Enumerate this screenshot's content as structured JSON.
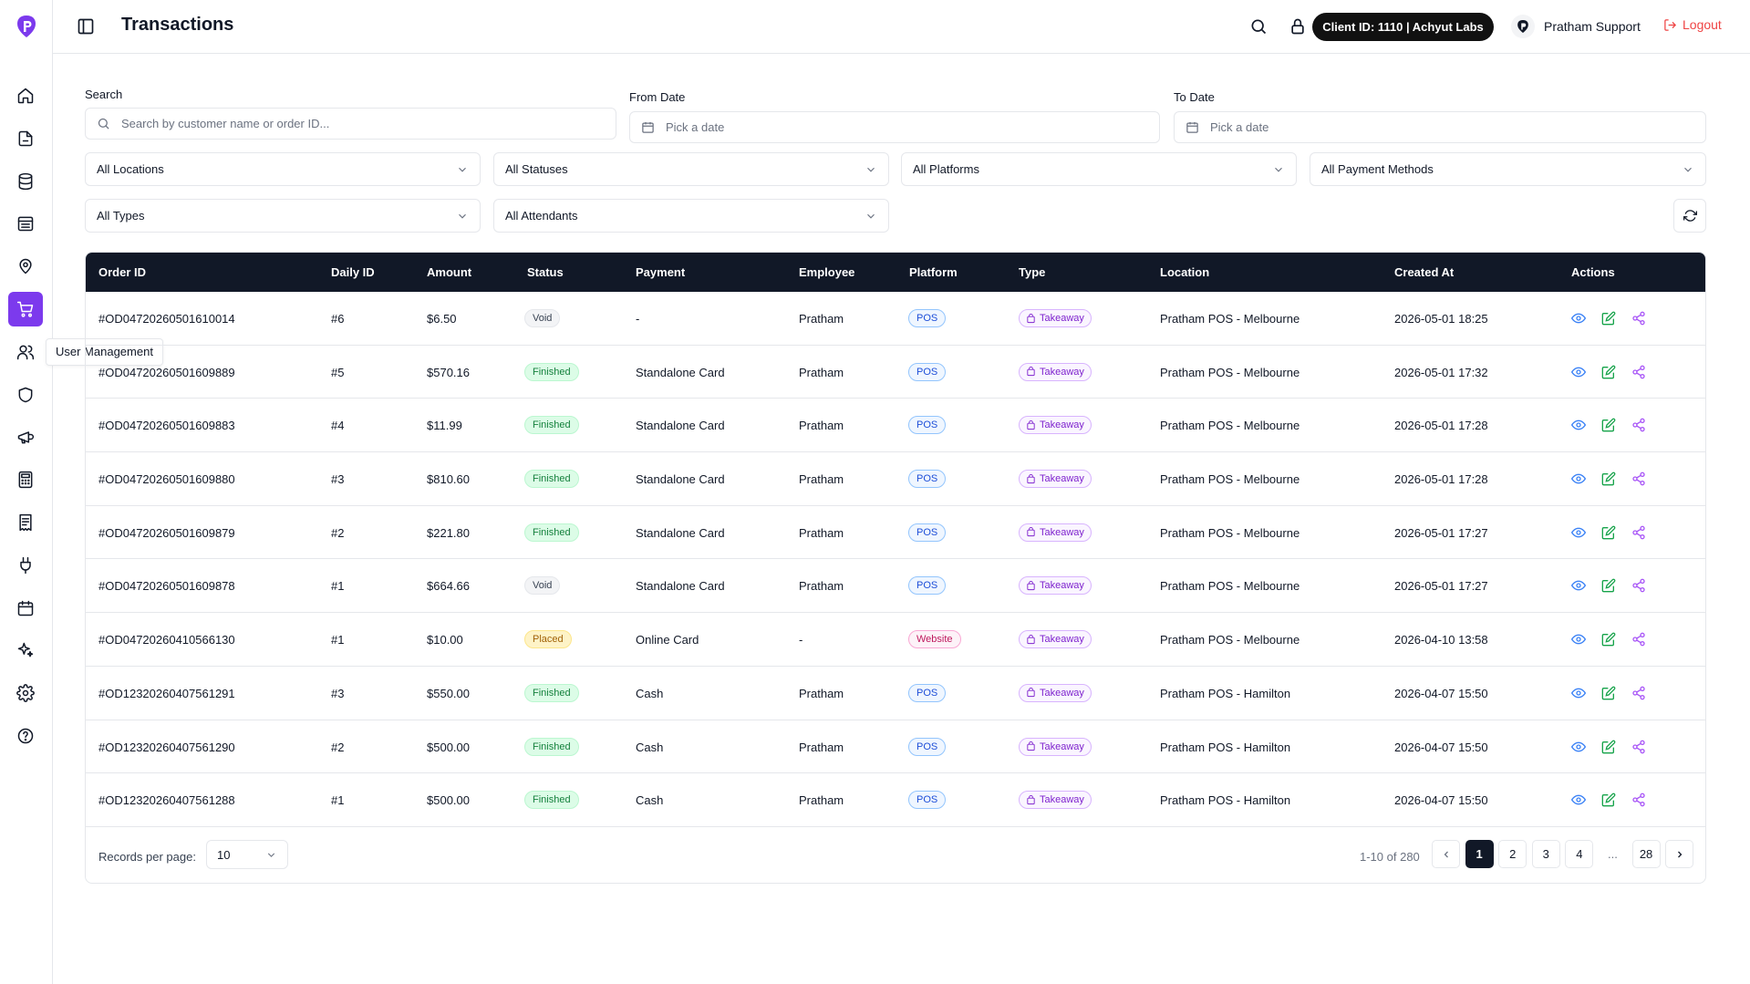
{
  "header": {
    "title": "Transactions",
    "client_badge": "Client ID: 1110 | Achyut Labs",
    "user_name": "Pratham Support",
    "logout_label": "Logout"
  },
  "sidebar": {
    "tooltip": "User Management",
    "items": [
      {
        "icon": "home-icon"
      },
      {
        "icon": "file-icon"
      },
      {
        "icon": "database-icon"
      },
      {
        "icon": "building-icon"
      },
      {
        "icon": "map-pin-icon"
      },
      {
        "icon": "cart-icon",
        "active": true
      },
      {
        "icon": "users-icon"
      },
      {
        "icon": "shield-icon"
      },
      {
        "icon": "megaphone-icon"
      },
      {
        "icon": "calculator-icon"
      },
      {
        "icon": "receipt-icon"
      },
      {
        "icon": "plug-icon"
      },
      {
        "icon": "calendar-icon"
      },
      {
        "icon": "sparkles-icon"
      },
      {
        "icon": "gear-icon"
      },
      {
        "icon": "help-icon"
      }
    ]
  },
  "filters": {
    "search_label": "Search",
    "search_placeholder": "Search by customer name or order ID...",
    "from_label": "From Date",
    "from_placeholder": "Pick a date",
    "to_label": "To Date",
    "to_placeholder": "Pick a date",
    "locations": "All Locations",
    "statuses": "All Statuses",
    "platforms": "All Platforms",
    "payment_methods": "All Payment Methods",
    "types": "All Types",
    "attendants": "All Attendants"
  },
  "table": {
    "columns": [
      "Order ID",
      "Daily ID",
      "Amount",
      "Status",
      "Payment",
      "Employee",
      "Platform",
      "Type",
      "Location",
      "Created At",
      "Actions"
    ],
    "rows": [
      {
        "order_id": "#OD04720260501610014",
        "daily_id": "#6",
        "amount": "$6.50",
        "status": "Void",
        "payment": "-",
        "employee": "Pratham",
        "platform": "POS",
        "type": "Takeaway",
        "location": "Pratham POS - Melbourne",
        "created_at": "2026-05-01 18:25"
      },
      {
        "order_id": "#OD04720260501609889",
        "daily_id": "#5",
        "amount": "$570.16",
        "status": "Finished",
        "payment": "Standalone Card",
        "employee": "Pratham",
        "platform": "POS",
        "type": "Takeaway",
        "location": "Pratham POS - Melbourne",
        "created_at": "2026-05-01 17:32"
      },
      {
        "order_id": "#OD04720260501609883",
        "daily_id": "#4",
        "amount": "$11.99",
        "status": "Finished",
        "payment": "Standalone Card",
        "employee": "Pratham",
        "platform": "POS",
        "type": "Takeaway",
        "location": "Pratham POS - Melbourne",
        "created_at": "2026-05-01 17:28"
      },
      {
        "order_id": "#OD04720260501609880",
        "daily_id": "#3",
        "amount": "$810.60",
        "status": "Finished",
        "payment": "Standalone Card",
        "employee": "Pratham",
        "platform": "POS",
        "type": "Takeaway",
        "location": "Pratham POS - Melbourne",
        "created_at": "2026-05-01 17:28"
      },
      {
        "order_id": "#OD04720260501609879",
        "daily_id": "#2",
        "amount": "$221.80",
        "status": "Finished",
        "payment": "Standalone Card",
        "employee": "Pratham",
        "platform": "POS",
        "type": "Takeaway",
        "location": "Pratham POS - Melbourne",
        "created_at": "2026-05-01 17:27"
      },
      {
        "order_id": "#OD04720260501609878",
        "daily_id": "#1",
        "amount": "$664.66",
        "status": "Void",
        "payment": "Standalone Card",
        "employee": "Pratham",
        "platform": "POS",
        "type": "Takeaway",
        "location": "Pratham POS - Melbourne",
        "created_at": "2026-05-01 17:27"
      },
      {
        "order_id": "#OD04720260410566130",
        "daily_id": "#1",
        "amount": "$10.00",
        "status": "Placed",
        "payment": "Online Card",
        "employee": "-",
        "platform": "Website",
        "type": "Takeaway",
        "location": "Pratham POS - Melbourne",
        "created_at": "2026-04-10 13:58"
      },
      {
        "order_id": "#OD12320260407561291",
        "daily_id": "#3",
        "amount": "$550.00",
        "status": "Finished",
        "payment": "Cash",
        "employee": "Pratham",
        "platform": "POS",
        "type": "Takeaway",
        "location": "Pratham POS - Hamilton",
        "created_at": "2026-04-07 15:50"
      },
      {
        "order_id": "#OD12320260407561290",
        "daily_id": "#2",
        "amount": "$500.00",
        "status": "Finished",
        "payment": "Cash",
        "employee": "Pratham",
        "platform": "POS",
        "type": "Takeaway",
        "location": "Pratham POS - Hamilton",
        "created_at": "2026-04-07 15:50"
      },
      {
        "order_id": "#OD12320260407561288",
        "daily_id": "#1",
        "amount": "$500.00",
        "status": "Finished",
        "payment": "Cash",
        "employee": "Pratham",
        "platform": "POS",
        "type": "Takeaway",
        "location": "Pratham POS - Hamilton",
        "created_at": "2026-04-07 15:50"
      }
    ]
  },
  "pagination": {
    "records_label": "Records per page:",
    "per_page": "10",
    "range": "1-10 of 280",
    "pages": [
      "1",
      "2",
      "3",
      "4",
      "...",
      "28"
    ],
    "current": "1"
  }
}
